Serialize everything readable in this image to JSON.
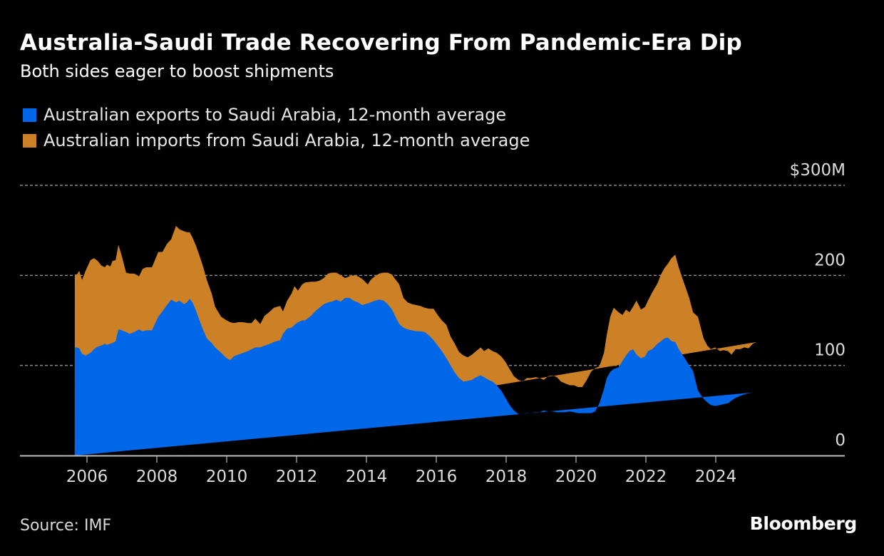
{
  "header": {
    "title": "Australia-Saudi Trade Recovering From Pandemic-Era Dip",
    "subtitle": "Both sides eager to boost shipments"
  },
  "footer": {
    "source": "Source: IMF",
    "brand": "Bloomberg"
  },
  "chart_data": {
    "type": "area",
    "stacked": true,
    "title": "Australia-Saudi Trade Recovering From Pandemic-Era Dip",
    "subtitle": "Both sides eager to boost shipments",
    "xlabel": "",
    "ylabel": "",
    "y_unit_label": "$300M",
    "ylim": [
      0,
      300
    ],
    "xlim": [
      2004.1,
      2027.7
    ],
    "y_ticks": [
      {
        "value": 300,
        "label": "$300M"
      },
      {
        "value": 200,
        "label": "200"
      },
      {
        "value": 100,
        "label": "100"
      },
      {
        "value": 0,
        "label": "0"
      }
    ],
    "x_ticks": [
      {
        "value": 2006,
        "label": "2006"
      },
      {
        "value": 2008,
        "label": "2008"
      },
      {
        "value": 2010,
        "label": "2010"
      },
      {
        "value": 2012,
        "label": "2012"
      },
      {
        "value": 2014,
        "label": "2014"
      },
      {
        "value": 2016,
        "label": "2016"
      },
      {
        "value": 2018,
        "label": "2018"
      },
      {
        "value": 2020,
        "label": "2020"
      },
      {
        "value": 2022,
        "label": "2022"
      },
      {
        "value": 2024,
        "label": "2024"
      }
    ],
    "grid": true,
    "y_axis_position": "right",
    "legend_position": "top-left",
    "series": [
      {
        "name": "Australian exports to Saudi Arabia, 12-month average",
        "color": "#0068e8"
      },
      {
        "name": "Australian imports from Saudi Arabia, 12-month average",
        "color": "#cd8126"
      }
    ],
    "x": [
      2005.65,
      2005.71,
      2005.78,
      2005.86,
      2005.96,
      2006.1,
      2006.2,
      2006.31,
      2006.41,
      2006.51,
      2006.57,
      2006.67,
      2006.73,
      2006.82,
      2006.9,
      2007.0,
      2007.12,
      2007.22,
      2007.35,
      2007.49,
      2007.59,
      2007.69,
      2007.86,
      2008.04,
      2008.16,
      2008.29,
      2008.41,
      2008.55,
      2008.65,
      2008.78,
      2008.86,
      2008.94,
      2009.02,
      2009.12,
      2009.22,
      2009.33,
      2009.43,
      2009.57,
      2009.67,
      2009.84,
      2009.92,
      2010.0,
      2010.1,
      2010.2,
      2010.33,
      2010.47,
      2010.61,
      2010.71,
      2010.82,
      2010.96,
      2011.08,
      2011.24,
      2011.35,
      2011.53,
      2011.61,
      2011.73,
      2011.86,
      2011.94,
      2012.04,
      2012.16,
      2012.24,
      2012.41,
      2012.53,
      2012.65,
      2012.78,
      2012.9,
      2013.02,
      2013.14,
      2013.27,
      2013.39,
      2013.51,
      2013.63,
      2013.76,
      2013.88,
      2014.04,
      2014.12,
      2014.24,
      2014.37,
      2014.49,
      2014.61,
      2014.73,
      2014.82,
      2014.94,
      2015.06,
      2015.18,
      2015.31,
      2015.43,
      2015.55,
      2015.67,
      2015.8,
      2015.92,
      2016.04,
      2016.16,
      2016.29,
      2016.41,
      2016.53,
      2016.65,
      2016.78,
      2016.9,
      2017.02,
      2017.14,
      2017.27,
      2017.37,
      2017.49,
      2017.61,
      2017.73,
      2017.86,
      2017.98,
      2018.1,
      2018.22,
      2018.35,
      2018.47,
      2018.59,
      2018.71,
      2018.84,
      2018.96,
      2019.08,
      2019.2,
      2019.33,
      2019.45,
      2019.57,
      2019.69,
      2019.82,
      2019.94,
      2020.06,
      2020.18,
      2020.31,
      2020.43,
      2020.55,
      2020.67,
      2020.8,
      2020.88,
      2020.98,
      2021.08,
      2021.22,
      2021.33,
      2021.43,
      2021.53,
      2021.63,
      2021.73,
      2021.86,
      2021.98,
      2022.06,
      2022.18,
      2022.33,
      2022.43,
      2022.53,
      2022.63,
      2022.73,
      2022.84,
      2022.94,
      2023.08,
      2023.24,
      2023.35,
      2023.49,
      2023.65,
      2023.76,
      2023.86,
      2023.98,
      2024.12,
      2024.22,
      2024.35,
      2024.45,
      2024.57,
      2024.69,
      2024.82,
      2024.94,
      2025.06,
      2025.18,
      2025.31,
      2025.45
    ],
    "exports": [
      120,
      120,
      119,
      113,
      111,
      114,
      118,
      121,
      122,
      124,
      123,
      124,
      125,
      127,
      140,
      139,
      137,
      135,
      137,
      140,
      138,
      139,
      139,
      154,
      160,
      167,
      173,
      170,
      172,
      168,
      170,
      174,
      170,
      161,
      150,
      139,
      130,
      125,
      120,
      114,
      111,
      108,
      106,
      110,
      112,
      114,
      116,
      118,
      120,
      120,
      122,
      124,
      126,
      128,
      135,
      141,
      142,
      145,
      148,
      150,
      150,
      155,
      160,
      164,
      168,
      170,
      171,
      173,
      171,
      175,
      175,
      172,
      170,
      167,
      169,
      170,
      172,
      173,
      172,
      168,
      162,
      155,
      146,
      142,
      140,
      139,
      138,
      138,
      137,
      133,
      128,
      122,
      116,
      108,
      100,
      92,
      86,
      82,
      83,
      84,
      87,
      89,
      87,
      84,
      82,
      78,
      72,
      64,
      56,
      50,
      46,
      46,
      47,
      47,
      48,
      48,
      50,
      49,
      49,
      48,
      48,
      48,
      49,
      48,
      47,
      47,
      47,
      47,
      49,
      58,
      74,
      86,
      93,
      96,
      98,
      105,
      111,
      116,
      118,
      112,
      108,
      110,
      116,
      118,
      124,
      127,
      130,
      131,
      127,
      126,
      118,
      110,
      100,
      94,
      72,
      63,
      59,
      56,
      55,
      56,
      57,
      58,
      61,
      64,
      66,
      68,
      69,
      70
    ],
    "totals": [
      201,
      201,
      205,
      195,
      205,
      217,
      219,
      216,
      211,
      209,
      212,
      210,
      216,
      217,
      234,
      221,
      203,
      202,
      202,
      199,
      207,
      209,
      209,
      226,
      226,
      235,
      240,
      255,
      251,
      249,
      248,
      248,
      242,
      233,
      222,
      209,
      195,
      180,
      165,
      154,
      152,
      150,
      148,
      147,
      148,
      148,
      147,
      147,
      152,
      146,
      155,
      160,
      164,
      166,
      160,
      172,
      180,
      188,
      183,
      190,
      192,
      193,
      193,
      194,
      197,
      202,
      203,
      203,
      200,
      197,
      199,
      200,
      199,
      196,
      190,
      195,
      199,
      202,
      203,
      203,
      201,
      196,
      190,
      175,
      170,
      168,
      167,
      166,
      164,
      163,
      163,
      156,
      150,
      145,
      132,
      124,
      115,
      111,
      109,
      112,
      116,
      120,
      116,
      119,
      116,
      114,
      110,
      104,
      96,
      88,
      84,
      82,
      86,
      86,
      87,
      86,
      84,
      88,
      89,
      87,
      82,
      80,
      78,
      78,
      76,
      76,
      84,
      93,
      97,
      99,
      114,
      134,
      154,
      164,
      159,
      156,
      162,
      159,
      165,
      172,
      162,
      165,
      172,
      181,
      191,
      201,
      208,
      213,
      219,
      223,
      209,
      193,
      175,
      159,
      154,
      130,
      122,
      118,
      120,
      116,
      117,
      116,
      112,
      118,
      118,
      120,
      119,
      124,
      126
    ]
  }
}
